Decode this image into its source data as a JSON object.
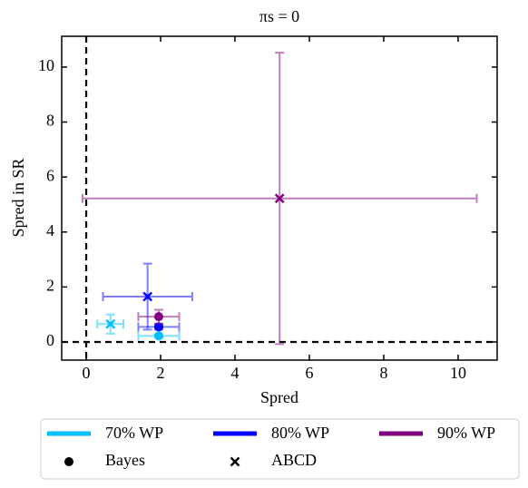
{
  "chart_data": {
    "type": "scatter",
    "title": "πs = 0",
    "x_label": "Spred",
    "y_label": "Spred in SR",
    "xlim": [
      -0.66,
      11.05
    ],
    "ylim": [
      -0.66,
      11.12
    ],
    "xticks": [
      0,
      2,
      4,
      6,
      8,
      10
    ],
    "yticks": [
      0,
      2,
      4,
      6,
      8,
      10
    ],
    "reference_lines": {
      "x": 0,
      "y": 0
    },
    "markers": [
      "Bayes",
      "ABCD"
    ],
    "series": [
      {
        "name": "70% WP",
        "color": "#00bfff",
        "x": [
          1.95,
          0.65
        ],
        "values": [
          0.22,
          0.65
        ],
        "xerr": [
          0.55,
          0.35
        ],
        "yerr": [
          0.05,
          0.35
        ]
      },
      {
        "name": "80% WP",
        "color": "#0000ff",
        "x": [
          1.95,
          1.65
        ],
        "values": [
          0.55,
          1.65
        ],
        "xerr": [
          0.55,
          1.2
        ],
        "yerr": [
          0.1,
          1.2
        ]
      },
      {
        "name": "90% WP",
        "color": "#800080",
        "x": [
          1.95,
          5.2
        ],
        "values": [
          0.92,
          5.22
        ],
        "xerr": [
          0.55,
          5.3
        ],
        "yerr": [
          0.25,
          5.3
        ]
      }
    ]
  }
}
